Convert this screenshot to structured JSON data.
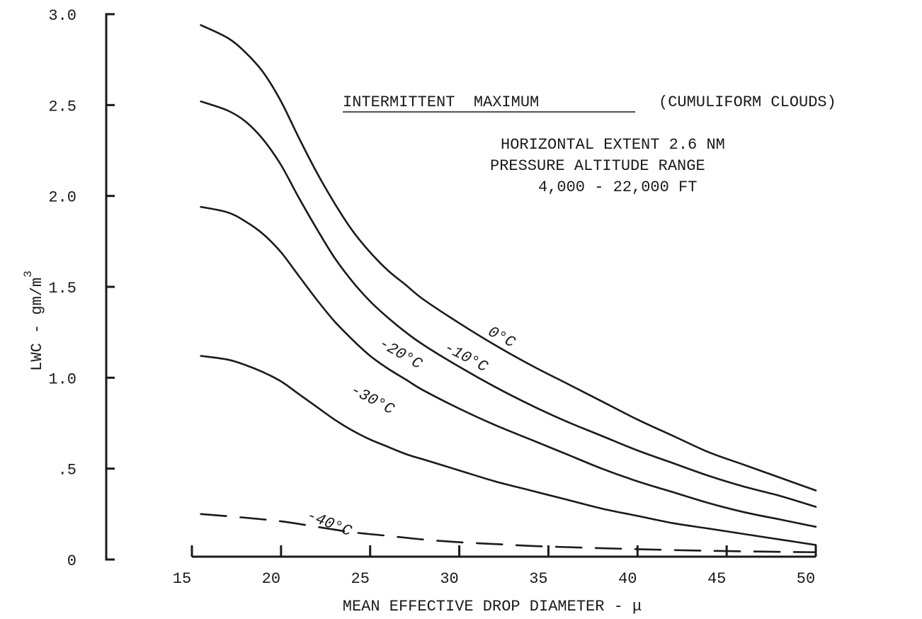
{
  "chart_data": {
    "type": "line",
    "title": "",
    "xlabel": "MEAN EFFECTIVE DROP DIAMETER - μ",
    "ylabel": "LWC - gm/m",
    "ylabel_superscript": "3",
    "xlim": [
      15,
      50
    ],
    "ylim": [
      0,
      3.0
    ],
    "x_ticks": [
      "15",
      "20",
      "25",
      "30",
      "35",
      "40",
      "45",
      "50"
    ],
    "y_ticks": [
      "0",
      ".5",
      "1.0",
      "1.5",
      "2.0",
      "2.5",
      "3.0"
    ],
    "grid": false,
    "annotations": {
      "heading_underlined": "INTERMITTENT  MAXIMUM",
      "heading_rest": "(CUMULIFORM CLOUDS)",
      "line1": "HORIZONTAL EXTENT 2.6 NM",
      "line2": "PRESSURE ALTITUDE RANGE",
      "line3": "4,000 - 22,000 FT"
    },
    "series": [
      {
        "name": "0°C",
        "style": "solid",
        "x": [
          15.5,
          17,
          18,
          19,
          20,
          21,
          22,
          23,
          24,
          25,
          26,
          27,
          28,
          30,
          32,
          34,
          36,
          38,
          40,
          42,
          44,
          46,
          48,
          50
        ],
        "y": [
          2.94,
          2.87,
          2.79,
          2.68,
          2.52,
          2.32,
          2.13,
          1.96,
          1.81,
          1.69,
          1.59,
          1.51,
          1.43,
          1.3,
          1.18,
          1.07,
          0.97,
          0.87,
          0.77,
          0.68,
          0.59,
          0.52,
          0.45,
          0.38
        ]
      },
      {
        "name": "-10°C",
        "style": "solid",
        "x": [
          15.5,
          17,
          18,
          19,
          20,
          21,
          22,
          23,
          24,
          25,
          26,
          27,
          28,
          30,
          32,
          34,
          36,
          38,
          40,
          42,
          44,
          46,
          48,
          50
        ],
        "y": [
          2.52,
          2.47,
          2.41,
          2.31,
          2.17,
          1.99,
          1.82,
          1.66,
          1.53,
          1.42,
          1.33,
          1.25,
          1.18,
          1.06,
          0.95,
          0.85,
          0.76,
          0.68,
          0.6,
          0.53,
          0.46,
          0.4,
          0.35,
          0.29
        ]
      },
      {
        "name": "-20°C",
        "style": "solid",
        "x": [
          15.5,
          17,
          18,
          19,
          20,
          21,
          22,
          23,
          24,
          25,
          26,
          27,
          28,
          30,
          32,
          34,
          36,
          38,
          40,
          42,
          44,
          46,
          48,
          50
        ],
        "y": [
          1.94,
          1.91,
          1.86,
          1.79,
          1.69,
          1.56,
          1.43,
          1.31,
          1.21,
          1.12,
          1.05,
          0.99,
          0.93,
          0.83,
          0.74,
          0.66,
          0.58,
          0.5,
          0.43,
          0.37,
          0.31,
          0.26,
          0.22,
          0.18
        ]
      },
      {
        "name": "-30°C",
        "style": "solid",
        "x": [
          15.5,
          17,
          18,
          19,
          20,
          21,
          22,
          23,
          24,
          25,
          26,
          27,
          28,
          30,
          32,
          34,
          36,
          38,
          40,
          42,
          44,
          46,
          48,
          50
        ],
        "y": [
          1.12,
          1.1,
          1.07,
          1.03,
          0.98,
          0.91,
          0.84,
          0.77,
          0.71,
          0.66,
          0.62,
          0.58,
          0.55,
          0.49,
          0.43,
          0.38,
          0.33,
          0.28,
          0.24,
          0.2,
          0.17,
          0.14,
          0.11,
          0.08
        ]
      },
      {
        "name": "-40°C",
        "style": "dashed",
        "x": [
          15.5,
          18,
          20,
          22,
          24,
          26,
          28,
          30,
          32,
          34,
          36,
          38,
          40,
          42,
          44,
          46,
          48,
          50
        ],
        "y": [
          0.25,
          0.23,
          0.21,
          0.18,
          0.15,
          0.13,
          0.11,
          0.095,
          0.085,
          0.075,
          0.068,
          0.062,
          0.057,
          0.052,
          0.048,
          0.045,
          0.042,
          0.04
        ]
      }
    ]
  },
  "colors": {
    "ink": "#1a1a1a",
    "background": "#ffffff"
  }
}
